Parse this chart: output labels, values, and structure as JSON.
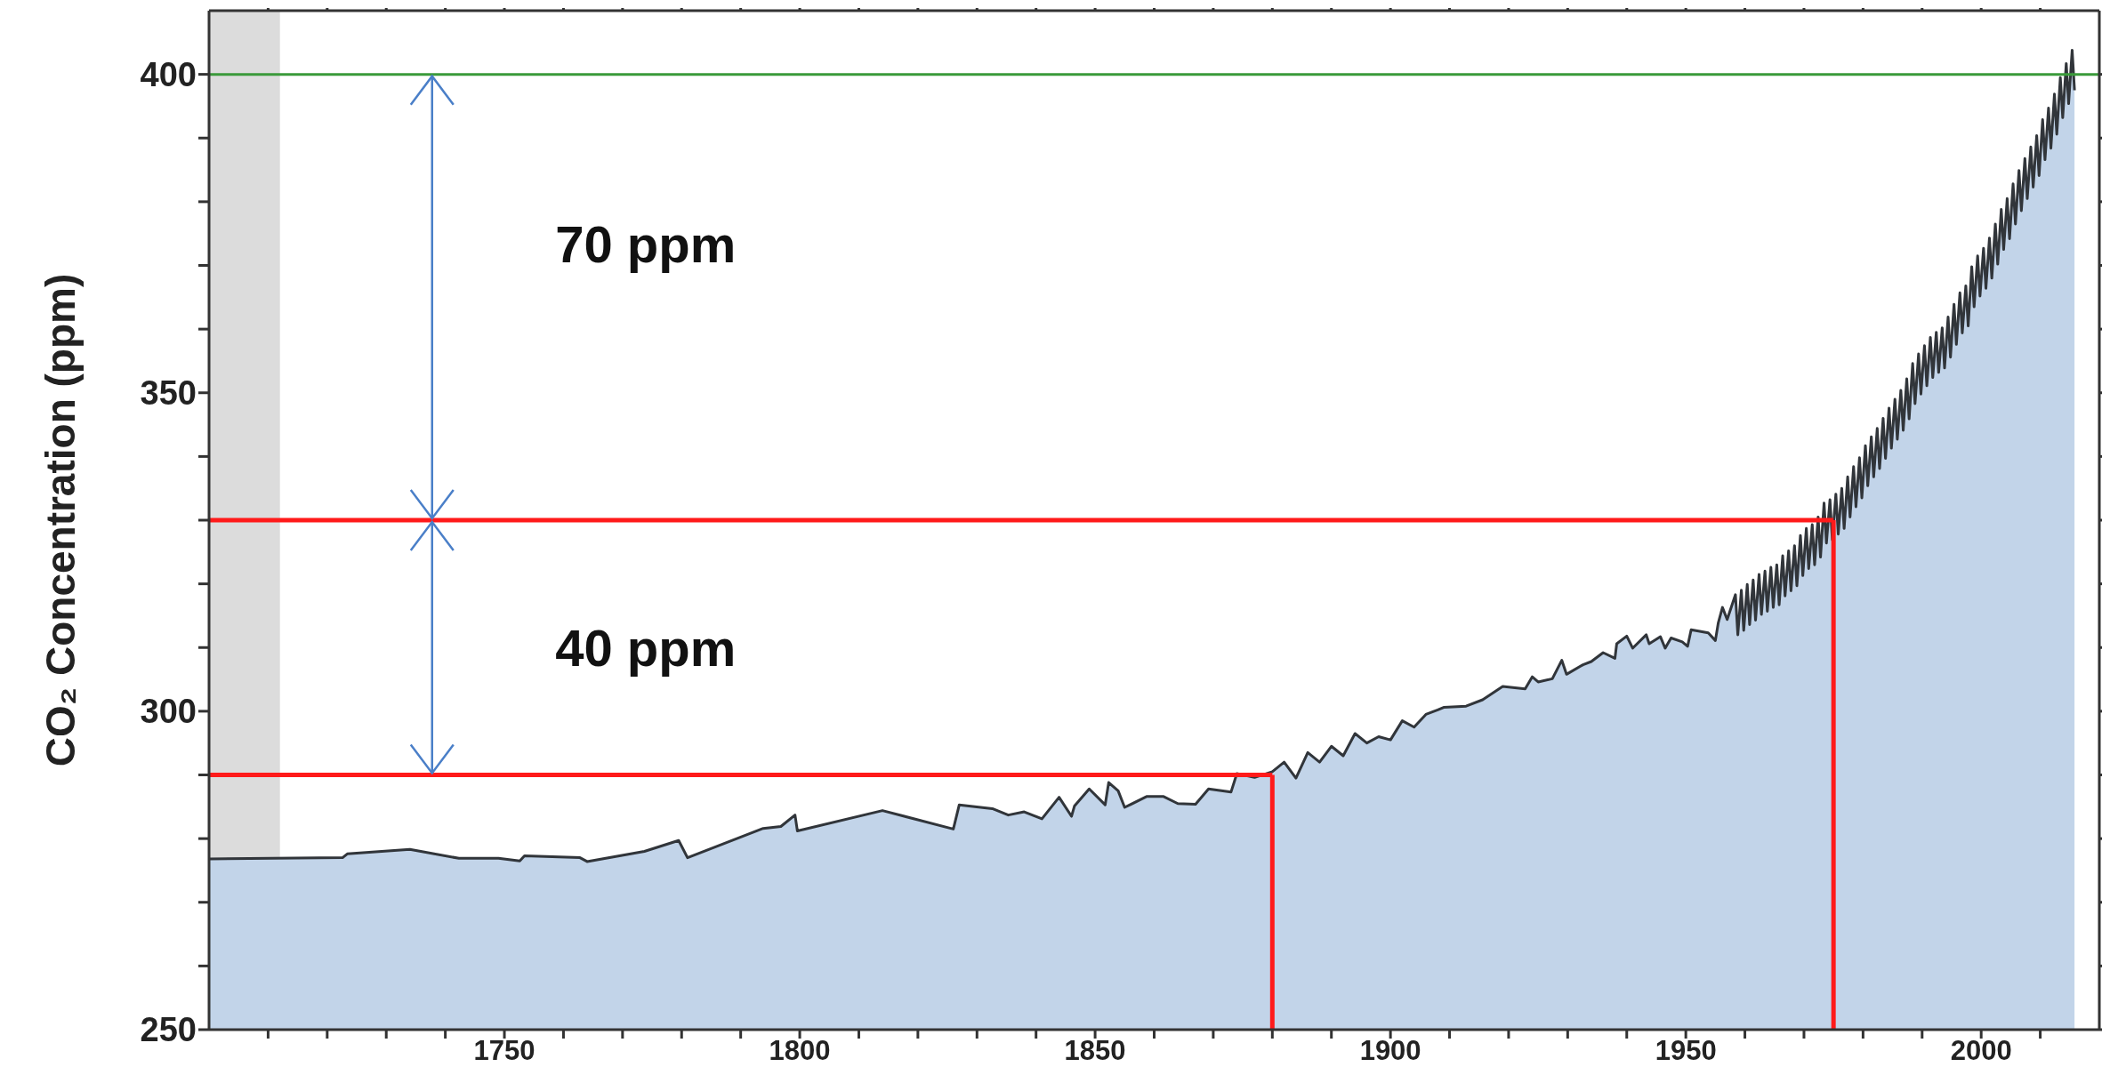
{
  "chart_data": {
    "type": "area",
    "ylabel": "CO₂ Concentration (ppm)",
    "xlim": [
      1700,
      2020
    ],
    "xticks": [
      {
        "value": 1710,
        "label": null
      },
      {
        "value": 1720,
        "label": null
      },
      {
        "value": 1730,
        "label": null
      },
      {
        "value": 1740,
        "label": null
      },
      1750,
      {
        "value": 1760,
        "label": null
      },
      {
        "value": 1770,
        "label": null
      },
      {
        "value": 1780,
        "label": null
      },
      {
        "value": 1790,
        "label": null
      },
      1800,
      {
        "value": 1810,
        "label": null
      },
      {
        "value": 1820,
        "label": null
      },
      {
        "value": 1830,
        "label": null
      },
      {
        "value": 1840,
        "label": null
      },
      1850,
      {
        "value": 1860,
        "label": null
      },
      {
        "value": 1870,
        "label": null
      },
      {
        "value": 1880,
        "label": null
      },
      {
        "value": 1890,
        "label": null
      },
      1900,
      {
        "value": 1910,
        "label": null
      },
      {
        "value": 1920,
        "label": null
      },
      {
        "value": 1930,
        "label": null
      },
      {
        "value": 1940,
        "label": null
      },
      1950,
      {
        "value": 1960,
        "label": null
      },
      {
        "value": 1970,
        "label": null
      },
      {
        "value": 1980,
        "label": null
      },
      {
        "value": 1990,
        "label": null
      },
      2000,
      {
        "value": 2010,
        "label": null
      }
    ],
    "ylim": [
      250,
      410
    ],
    "yticks": [
      250,
      {
        "value": 260,
        "label": null
      },
      {
        "value": 270,
        "label": null
      },
      {
        "value": 280,
        "label": null
      },
      {
        "value": 290,
        "label": null
      },
      300,
      {
        "value": 310,
        "label": null
      },
      {
        "value": 320,
        "label": null
      },
      {
        "value": 330,
        "label": null
      },
      {
        "value": 340,
        "label": null
      },
      350,
      {
        "value": 360,
        "label": null
      },
      {
        "value": 370,
        "label": null
      },
      {
        "value": 380,
        "label": null
      },
      {
        "value": 390,
        "label": null
      },
      400
    ],
    "series": [
      {
        "color": "#c2d4e9",
        "x": [
          1700,
          1722.6,
          1723.4,
          1734,
          1742.3,
          1749,
          1752.6,
          1753.4,
          1762.8,
          1764,
          1773.7,
          1779.5,
          1781,
          1793.8,
          1796.8,
          1799.2,
          1799.6,
          1814,
          1826,
          1827,
          1832.6,
          1835.3,
          1838,
          1841,
          1843.9,
          1846,
          1846.5,
          1849,
          1851.7,
          1852.3,
          1853.9,
          1855,
          1858.7,
          1861.6,
          1864,
          1867,
          1869.2,
          1873,
          1874,
          1877,
          1880,
          1882,
          1884,
          1886,
          1888,
          1890,
          1892,
          1894,
          1896,
          1898,
          1900,
          1902,
          1904,
          1906,
          1908,
          1909,
          1912.8,
          1915.6,
          1919,
          1922.8,
          1924,
          1925,
          1927.4,
          1929,
          1929.8,
          1932.6,
          1934,
          1936,
          1938,
          1938.3,
          1940,
          1941,
          1943.3,
          1943.8,
          1945.7,
          1946.5,
          1947.5,
          1949.4,
          1950.3,
          1950.9,
          1953.8,
          1955,
          1955.5,
          1956.2,
          1957,
          1958.4,
          1958.8,
          1959.4,
          1959.8,
          1960.4,
          1960.8,
          1961.4,
          1961.8,
          1962.4,
          1962.8,
          1963.4,
          1963.8,
          1964.4,
          1964.8,
          1965.4,
          1965.8,
          1966.4,
          1966.8,
          1967.4,
          1967.8,
          1968.4,
          1968.8,
          1969.4,
          1969.8,
          1970.4,
          1970.8,
          1971.4,
          1971.8,
          1972.4,
          1972.8,
          1973.4,
          1973.8,
          1974.4,
          1974.8,
          1975.4,
          1975.8,
          1976.4,
          1976.8,
          1977.4,
          1977.8,
          1978.4,
          1978.8,
          1979.4,
          1979.8,
          1980.4,
          1980.8,
          1981.4,
          1981.8,
          1982.4,
          1982.8,
          1983.4,
          1983.8,
          1984.4,
          1984.8,
          1985.4,
          1985.8,
          1986.4,
          1986.8,
          1987.4,
          1987.8,
          1988.4,
          1988.8,
          1989.4,
          1989.8,
          1990.4,
          1990.8,
          1991.4,
          1991.8,
          1992.4,
          1992.8,
          1993.4,
          1993.8,
          1994.4,
          1994.8,
          1995.4,
          1995.8,
          1996.4,
          1996.8,
          1997.4,
          1997.8,
          1998.4,
          1998.8,
          1999.4,
          1999.8,
          2000.4,
          2000.8,
          2001.4,
          2001.8,
          2002.4,
          2002.8,
          2003.4,
          2003.8,
          2004.4,
          2004.8,
          2005.4,
          2005.8,
          2006.4,
          2006.8,
          2007.4,
          2007.8,
          2008.4,
          2008.8,
          2009.4,
          2009.8,
          2010.4,
          2010.8,
          2011.4,
          2011.8,
          2012.4,
          2012.8,
          2013.4,
          2013.8,
          2014.4,
          2014.8,
          2015.4,
          2015.8
        ],
        "values": [
          276.8,
          277.0,
          277.6,
          278.3,
          276.9,
          276.9,
          276.5,
          277.3,
          277.0,
          276.4,
          278.0,
          279.7,
          277.0,
          281.6,
          281.9,
          283.7,
          281.2,
          284.4,
          281.5,
          285.3,
          284.7,
          283.7,
          284.2,
          283.1,
          286.5,
          283.5,
          285.1,
          287.8,
          285.3,
          288.8,
          287.5,
          284.9,
          286.6,
          286.6,
          285.5,
          285.4,
          287.8,
          287.3,
          290.2,
          289.6,
          290.5,
          292.0,
          289.5,
          293.5,
          292.0,
          294.5,
          293.0,
          296.5,
          295.0,
          296.0,
          295.5,
          298.5,
          297.5,
          299.5,
          300.2,
          300.6,
          300.8,
          301.8,
          303.9,
          303.5,
          305.4,
          304.6,
          305.1,
          308.0,
          305.8,
          307.3,
          307.8,
          309.2,
          308.3,
          310.6,
          311.8,
          309.9,
          312.0,
          310.6,
          311.7,
          309.9,
          311.5,
          310.9,
          310.2,
          312.8,
          312.3,
          311.1,
          313.9,
          316.3,
          314.4,
          318.3,
          312.0,
          319.0,
          312.7,
          319.9,
          313.6,
          320.6,
          314.3,
          321.5,
          315.2,
          322.0,
          315.7,
          322.6,
          316.3,
          323.0,
          316.7,
          324.4,
          318.1,
          325.2,
          318.9,
          326.0,
          319.7,
          327.6,
          321.3,
          328.7,
          322.4,
          329.3,
          323.0,
          330.5,
          324.2,
          332.7,
          326.4,
          333.2,
          326.9,
          334.1,
          327.8,
          335.0,
          328.7,
          336.8,
          330.5,
          338.4,
          332.1,
          339.8,
          333.5,
          341.7,
          335.4,
          343.1,
          336.8,
          344.4,
          338.1,
          346.0,
          339.7,
          347.6,
          341.3,
          349.0,
          342.7,
          350.4,
          344.1,
          352.2,
          345.9,
          354.6,
          348.3,
          356.1,
          349.8,
          357.4,
          351.1,
          358.7,
          352.4,
          359.5,
          353.2,
          360.2,
          353.9,
          361.9,
          355.6,
          363.9,
          357.6,
          365.7,
          359.4,
          366.8,
          360.5,
          369.8,
          363.5,
          371.5,
          365.2,
          372.7,
          366.4,
          374.3,
          368.0,
          376.5,
          370.2,
          378.8,
          372.5,
          380.5,
          374.2,
          382.8,
          376.5,
          384.9,
          378.6,
          386.8,
          380.5,
          388.6,
          382.3,
          390.4,
          384.1,
          392.9,
          386.6,
          394.7,
          388.4,
          396.9,
          390.6,
          399.5,
          393.2,
          401.7,
          395.4,
          403.8,
          397.5
        ]
      }
    ],
    "ref_lines": [
      {
        "axis": "y",
        "value": 290,
        "color": "#ff1a1a"
      },
      {
        "axis": "x",
        "value": 1880,
        "color": "#ff1a1a"
      },
      {
        "axis": "y",
        "value": 330,
        "color": "#ff1a1a"
      },
      {
        "axis": "x",
        "value": 1975,
        "color": "#ff1a1a"
      },
      {
        "axis": "y",
        "value": 400,
        "color": "#3a9a3a"
      }
    ],
    "bands": [
      {
        "axis": "x",
        "from": 1700,
        "to": 1712,
        "color": "#8c8c8c"
      }
    ],
    "annotations": [
      "70 ppm",
      "40 ppm"
    ]
  }
}
